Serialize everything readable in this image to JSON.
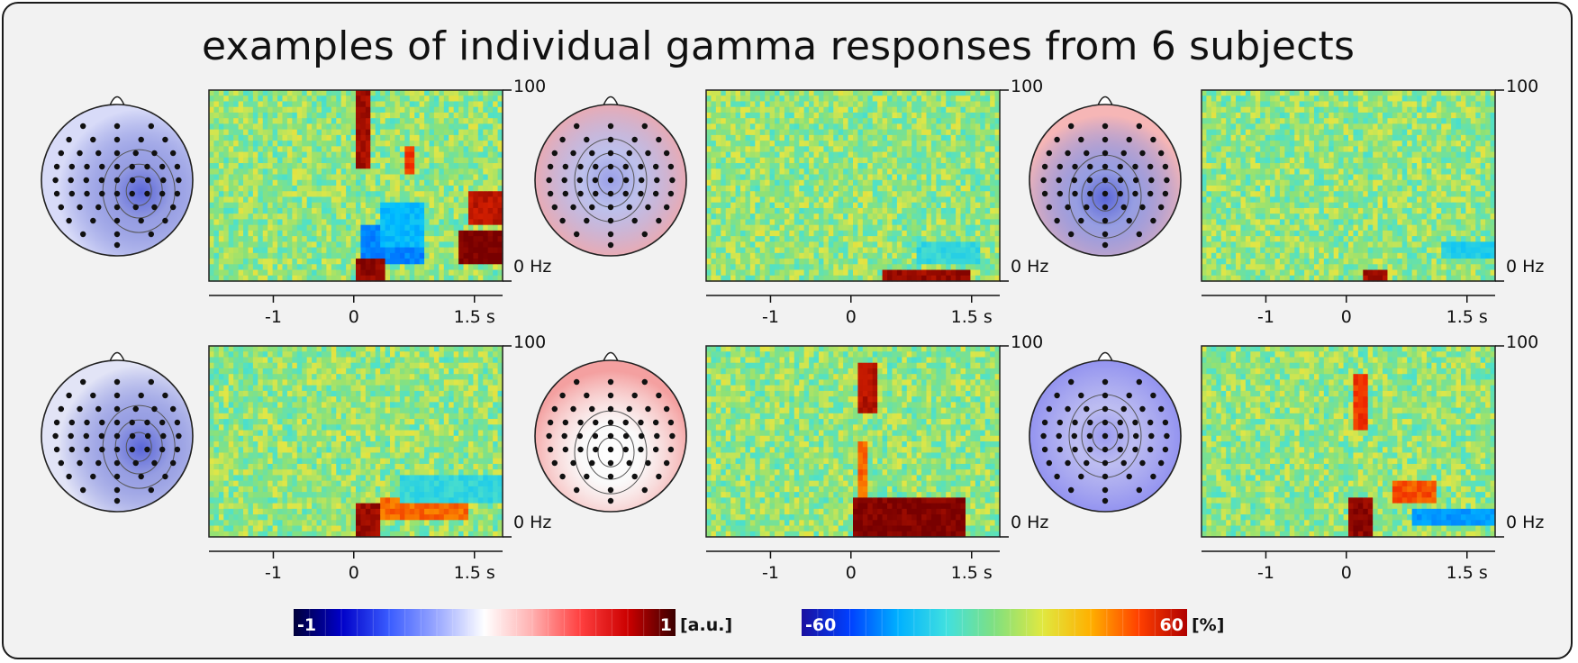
{
  "title": "examples of individual gamma responses from 6 subjects",
  "axes": {
    "x_ticks": [
      "-1",
      "0",
      "1.5 s"
    ],
    "x_tick_values": [
      -1,
      0,
      1.5
    ],
    "x_range": [
      -1.8,
      1.85
    ],
    "y_top_label": "100",
    "y_bottom_label": "0 Hz",
    "y_range": [
      0,
      100
    ]
  },
  "colorbars": {
    "topo": {
      "min_label": "-1",
      "max_label": "1",
      "unit": "[a.u.]",
      "colors": [
        "#00003a",
        "#0000c8",
        "#3a5cff",
        "#9aa8ff",
        "#ffffff",
        "#ffb0b0",
        "#ff4040",
        "#cc0000",
        "#3a0000"
      ]
    },
    "tf": {
      "min_label": "-60",
      "max_label": "60",
      "unit": "[%]",
      "colors": [
        "#1a10a0",
        "#0040ff",
        "#00b0ff",
        "#40e0e0",
        "#80e080",
        "#e0e840",
        "#ffb000",
        "#ff4000",
        "#b00000"
      ]
    }
  },
  "subjects": [
    {
      "id": 1,
      "topo_tint": "#d8dbf8",
      "topo_blob": "#5a66d8",
      "blob_pos": "right-center"
    },
    {
      "id": 2,
      "topo_tint": "#f4a8a8",
      "topo_blob": "#9aa0e8",
      "blob_pos": "center"
    },
    {
      "id": 3,
      "topo_tint": "#f6b6b6",
      "topo_blob": "#5a66d8",
      "blob_pos": "center-low"
    },
    {
      "id": 4,
      "topo_tint": "#e2e4f6",
      "topo_blob": "#5a66d8",
      "blob_pos": "right-center"
    },
    {
      "id": 5,
      "topo_tint": "#f4a0a0",
      "topo_blob": "#ffffff",
      "blob_pos": "center-low"
    },
    {
      "id": 6,
      "topo_tint": "#8c8cf0",
      "topo_blob": "#9a9af0",
      "blob_pos": "center"
    }
  ]
}
